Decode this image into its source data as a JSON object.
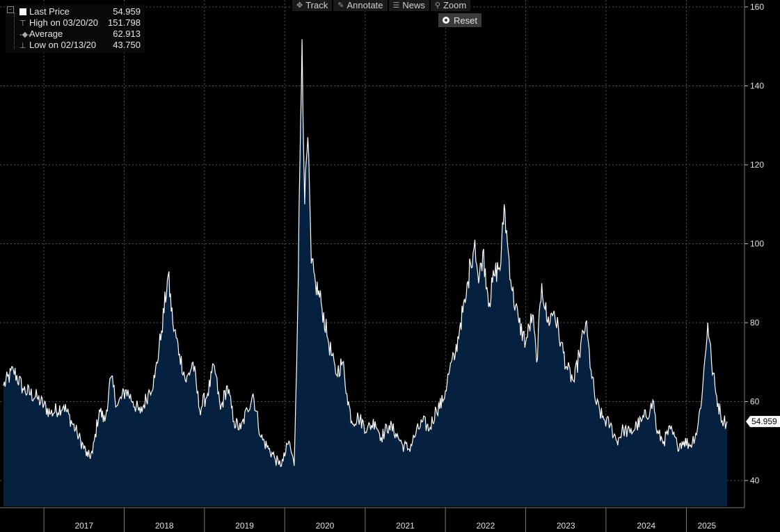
{
  "toolbar": {
    "items": [
      {
        "label": "Track",
        "icon": "crosshair-icon",
        "glyph": "✥"
      },
      {
        "label": "Annotate",
        "icon": "pencil-icon",
        "glyph": "✎"
      },
      {
        "label": "News",
        "icon": "news-icon",
        "glyph": "☰"
      },
      {
        "label": "Zoom",
        "icon": "magnifier-icon",
        "glyph": "⚲"
      }
    ],
    "reset_label": "Reset"
  },
  "legend": {
    "rows": [
      {
        "label": "Last Price",
        "value": "54.959"
      },
      {
        "label": "High on 03/20/20",
        "value": "151.798"
      },
      {
        "label": "Average",
        "value": "62.913"
      },
      {
        "label": "Low on 02/13/20",
        "value": "43.750"
      }
    ]
  },
  "colors": {
    "background": "#000000",
    "line": "#ffffff",
    "fill": "#06203f",
    "grid": "#555555",
    "last_price_tag": "#ffffff"
  },
  "chart_data": {
    "type": "area",
    "title": "",
    "xlabel": "",
    "ylabel": "",
    "ylim": [
      33,
      161
    ],
    "yticks": [
      40,
      60,
      80,
      100,
      120,
      140,
      160
    ],
    "ytick_labels": [
      "40",
      "60",
      "80",
      "100",
      "120",
      "140",
      "160"
    ],
    "x_tick_labels": [
      "2017",
      "2018",
      "2019",
      "2020",
      "2021",
      "2022",
      "2023",
      "2024",
      "2025"
    ],
    "grid": true,
    "last_price": 54.959,
    "last_price_label": "54.959",
    "series": [
      {
        "points": [
          [
            "2016-07-01",
            64
          ],
          [
            "2016-08-15",
            68
          ],
          [
            "2016-10-01",
            63
          ],
          [
            "2016-12-01",
            61
          ],
          [
            "2017-02-01",
            57
          ],
          [
            "2017-04-01",
            59
          ],
          [
            "2017-06-01",
            52
          ],
          [
            "2017-07-20",
            46
          ],
          [
            "2017-08-10",
            47
          ],
          [
            "2017-09-10",
            58
          ],
          [
            "2017-10-05",
            55
          ],
          [
            "2017-11-01",
            66
          ],
          [
            "2017-12-01",
            59
          ],
          [
            "2018-01-10",
            63
          ],
          [
            "2018-02-10",
            60
          ],
          [
            "2018-03-15",
            57
          ],
          [
            "2018-04-20",
            62
          ],
          [
            "2018-05-20",
            66
          ],
          [
            "2018-06-20",
            78
          ],
          [
            "2018-07-20",
            92
          ],
          [
            "2018-08-10",
            80
          ],
          [
            "2018-09-10",
            72
          ],
          [
            "2018-10-10",
            65
          ],
          [
            "2018-11-10",
            70
          ],
          [
            "2018-12-10",
            58
          ],
          [
            "2019-01-15",
            62
          ],
          [
            "2019-02-15",
            69
          ],
          [
            "2019-03-15",
            58
          ],
          [
            "2019-04-15",
            64
          ],
          [
            "2019-05-15",
            55
          ],
          [
            "2019-06-15",
            53
          ],
          [
            "2019-07-15",
            58
          ],
          [
            "2019-08-10",
            62
          ],
          [
            "2019-09-15",
            51
          ],
          [
            "2019-10-20",
            48
          ],
          [
            "2019-11-15",
            46
          ],
          [
            "2019-12-05",
            44
          ],
          [
            "2019-12-25",
            45
          ],
          [
            "2020-01-20",
            50
          ],
          [
            "2020-02-13",
            43.75
          ],
          [
            "2020-02-28",
            80
          ],
          [
            "2020-03-10",
            120
          ],
          [
            "2020-03-20",
            151.8
          ],
          [
            "2020-04-01",
            110
          ],
          [
            "2020-04-15",
            127
          ],
          [
            "2020-05-01",
            95
          ],
          [
            "2020-05-20",
            90
          ],
          [
            "2020-06-15",
            85
          ],
          [
            "2020-07-15",
            76
          ],
          [
            "2020-08-20",
            67
          ],
          [
            "2020-09-20",
            70
          ],
          [
            "2020-10-10",
            62
          ],
          [
            "2020-11-01",
            55
          ],
          [
            "2020-12-01",
            56
          ],
          [
            "2021-01-10",
            53
          ],
          [
            "2021-02-15",
            55
          ],
          [
            "2021-03-15",
            51
          ],
          [
            "2021-04-20",
            54
          ],
          [
            "2021-05-20",
            52
          ],
          [
            "2021-06-20",
            49
          ],
          [
            "2021-07-20",
            48
          ],
          [
            "2021-08-20",
            52
          ],
          [
            "2021-09-20",
            55
          ],
          [
            "2021-10-20",
            53
          ],
          [
            "2021-11-20",
            58
          ],
          [
            "2021-12-20",
            60
          ],
          [
            "2022-01-20",
            68
          ],
          [
            "2022-02-15",
            72
          ],
          [
            "2022-03-10",
            80
          ],
          [
            "2022-04-01",
            85
          ],
          [
            "2022-04-25",
            95
          ],
          [
            "2022-05-15",
            101
          ],
          [
            "2022-06-01",
            90
          ],
          [
            "2022-06-20",
            98
          ],
          [
            "2022-07-20",
            85
          ],
          [
            "2022-08-10",
            92
          ],
          [
            "2022-09-10",
            95
          ],
          [
            "2022-09-25",
            110
          ],
          [
            "2022-10-10",
            100
          ],
          [
            "2022-11-01",
            88
          ],
          [
            "2022-12-01",
            80
          ],
          [
            "2023-01-01",
            75
          ],
          [
            "2023-02-01",
            82
          ],
          [
            "2023-02-20",
            70
          ],
          [
            "2023-03-15",
            90
          ],
          [
            "2023-04-10",
            80
          ],
          [
            "2023-05-10",
            83
          ],
          [
            "2023-06-10",
            75
          ],
          [
            "2023-07-10",
            68
          ],
          [
            "2023-08-10",
            65
          ],
          [
            "2023-09-01",
            72
          ],
          [
            "2023-10-01",
            80
          ],
          [
            "2023-10-25",
            68
          ],
          [
            "2023-11-15",
            60
          ],
          [
            "2023-12-15",
            56
          ],
          [
            "2024-01-20",
            54
          ],
          [
            "2024-02-20",
            50
          ],
          [
            "2024-03-20",
            53
          ],
          [
            "2024-04-20",
            52
          ],
          [
            "2024-05-20",
            54
          ],
          [
            "2024-06-10",
            55
          ],
          [
            "2024-07-20",
            58
          ],
          [
            "2024-08-05",
            60
          ],
          [
            "2024-08-20",
            52
          ],
          [
            "2024-09-20",
            50
          ],
          [
            "2024-10-20",
            53
          ],
          [
            "2024-11-20",
            49
          ],
          [
            "2024-12-20",
            50
          ],
          [
            "2025-01-20",
            49
          ],
          [
            "2025-02-20",
            53
          ],
          [
            "2025-03-15",
            63
          ],
          [
            "2025-04-08",
            80
          ],
          [
            "2025-04-25",
            70
          ],
          [
            "2025-05-15",
            62
          ],
          [
            "2025-06-05",
            57
          ],
          [
            "2025-06-20",
            55
          ],
          [
            "2025-07-05",
            54.959
          ]
        ]
      }
    ]
  }
}
